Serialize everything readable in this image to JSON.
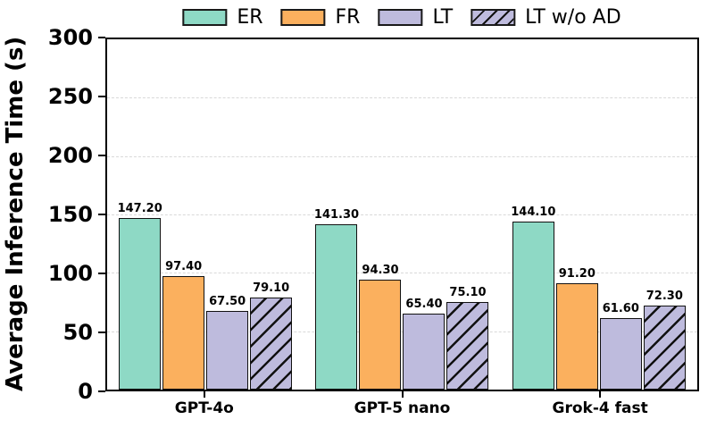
{
  "chart_data": {
    "type": "bar",
    "title": "",
    "xlabel": "",
    "ylabel": "Average Inference Time (s)",
    "categories": [
      "GPT-4o",
      "GPT-5 nano",
      "Grok-4 fast"
    ],
    "series": [
      {
        "name": "ER",
        "color": "#8ED9C5",
        "hatch": "none",
        "values": [
          147.2,
          141.3,
          144.1
        ],
        "value_labels": [
          "147.20",
          "141.30",
          "144.10"
        ]
      },
      {
        "name": "FR",
        "color": "#FBB05E",
        "hatch": "none",
        "values": [
          97.4,
          94.3,
          91.2
        ],
        "value_labels": [
          "97.40",
          "94.30",
          "91.20"
        ]
      },
      {
        "name": "LT",
        "color": "#BEBBDD",
        "hatch": "none",
        "values": [
          67.5,
          65.4,
          61.6
        ],
        "value_labels": [
          "67.50",
          "65.40",
          "61.60"
        ]
      },
      {
        "name": "LT w/o AD",
        "color": "#BEBBDD",
        "hatch": "diagonal",
        "values": [
          79.1,
          75.1,
          72.3
        ],
        "value_labels": [
          "79.10",
          "75.10",
          "72.30"
        ]
      }
    ],
    "ylim": [
      0,
      300
    ],
    "yticks": [
      "0",
      "50",
      "100",
      "150",
      "200",
      "250",
      "300"
    ],
    "grid": "horizontal-dashed",
    "legend_position": "top-center",
    "colors": {
      "bar_edge": "#111111",
      "hatch": "#111111",
      "gridline": "#d9d9d9",
      "axis": "#000000",
      "background": "#ffffff"
    }
  }
}
